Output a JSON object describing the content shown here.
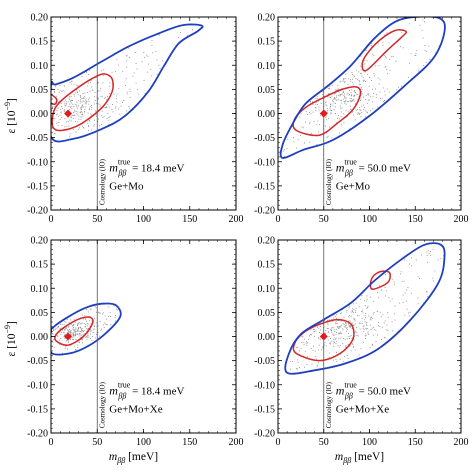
{
  "chart_data": [
    {
      "type": "scatter",
      "panel": "top-left",
      "xlim": [
        0,
        200
      ],
      "ylim": [
        -0.2,
        0.2
      ],
      "x_ticks": [
        "0",
        "50",
        "100",
        "150",
        "200"
      ],
      "y_ticks": [
        "-0.20",
        "-0.15",
        "-0.10",
        "-0.05",
        "0.00",
        "0.05",
        "0.10",
        "0.15",
        "0.20"
      ],
      "xlabel": "",
      "ylabel_main": "ε [10",
      "ylabel_sup": "−9",
      "ylabel_end": "]",
      "vline": {
        "x": 50,
        "label": "Cosmology (IO)"
      },
      "annotation": {
        "m_sub": "ββ",
        "m_sup": "true",
        "value": " = 18.4 meV",
        "experiments": "Ge+Mo"
      },
      "true_point": {
        "x": 18.4,
        "y": 0.0
      },
      "contours": [
        {
          "level": "inner",
          "color": "#d62728",
          "points": [
            [
              2,
              -0.028
            ],
            [
              12,
              -0.035
            ],
            [
              32,
              -0.022
            ],
            [
              55,
              0.012
            ],
            [
              66,
              0.045
            ],
            [
              66,
              0.072
            ],
            [
              57,
              0.082
            ],
            [
              44,
              0.072
            ],
            [
              28,
              0.052
            ],
            [
              12,
              0.028
            ],
            [
              3,
              0.005
            ]
          ]
        },
        {
          "level": "inner",
          "color": "#d62728",
          "points": [
            [
              0,
              0.022
            ],
            [
              5,
              0.02
            ],
            [
              6,
              0.03
            ],
            [
              0,
              0.038
            ]
          ]
        },
        {
          "level": "outer",
          "color": "#1f3fbf",
          "points": [
            [
              0,
              -0.048
            ],
            [
              25,
              -0.052
            ],
            [
              55,
              -0.032
            ],
            [
              80,
              -0.005
            ],
            [
              105,
              0.045
            ],
            [
              122,
              0.098
            ],
            [
              138,
              0.145
            ],
            [
              158,
              0.17
            ],
            [
              163,
              0.182
            ],
            [
              142,
              0.183
            ],
            [
              115,
              0.165
            ],
            [
              85,
              0.14
            ],
            [
              55,
              0.108
            ],
            [
              25,
              0.075
            ],
            [
              5,
              0.06
            ],
            [
              0,
              0.058
            ]
          ]
        }
      ],
      "scatter_cloud": {
        "center": [
          30,
          0.015
        ],
        "n": 380
      }
    },
    {
      "type": "scatter",
      "panel": "top-right",
      "xlim": [
        0,
        200
      ],
      "ylim": [
        -0.2,
        0.2
      ],
      "x_ticks": [
        "0",
        "50",
        "100",
        "150",
        "200"
      ],
      "y_ticks": [
        "-0.20",
        "-0.15",
        "-0.10",
        "-0.05",
        "0.00",
        "0.05",
        "0.10",
        "0.15",
        "0.20"
      ],
      "xlabel": "",
      "vline": {
        "x": 50,
        "label": "Cosmology (IO)"
      },
      "annotation": {
        "m_sub": "ββ",
        "m_sup": "true",
        "value": " = 50.0 meV",
        "experiments": "Ge+Mo"
      },
      "true_point": {
        "x": 50.0,
        "y": 0.0
      },
      "contours": [
        {
          "level": "inner",
          "color": "#d62728",
          "points": [
            [
              20,
              -0.035
            ],
            [
              45,
              -0.045
            ],
            [
              65,
              -0.02
            ],
            [
              82,
              0.008
            ],
            [
              90,
              0.04
            ],
            [
              86,
              0.055
            ],
            [
              70,
              0.05
            ],
            [
              52,
              0.035
            ],
            [
              32,
              0.015
            ],
            [
              18,
              -0.012
            ]
          ]
        },
        {
          "level": "inner",
          "color": "#d62728",
          "points": [
            [
              97,
              0.09
            ],
            [
              120,
              0.132
            ],
            [
              135,
              0.158
            ],
            [
              140,
              0.17
            ],
            [
              128,
              0.172
            ],
            [
              110,
              0.15
            ],
            [
              96,
              0.12
            ],
            [
              92,
              0.1
            ]
          ]
        },
        {
          "level": "outer",
          "color": "#1f3fbf",
          "points": [
            [
              5,
              -0.092
            ],
            [
              28,
              -0.075
            ],
            [
              60,
              -0.055
            ],
            [
              100,
              -0.005
            ],
            [
              140,
              0.06
            ],
            [
              170,
              0.115
            ],
            [
              182,
              0.17
            ],
            [
              177,
              0.197
            ],
            [
              150,
              0.2
            ],
            [
              128,
              0.19
            ],
            [
              105,
              0.155
            ],
            [
              80,
              0.1
            ],
            [
              55,
              0.058
            ],
            [
              30,
              0.02
            ],
            [
              15,
              -0.025
            ],
            [
              5,
              -0.065
            ]
          ]
        }
      ],
      "scatter_cloud": {
        "center": [
          65,
          0.035
        ],
        "n": 420
      }
    },
    {
      "type": "scatter",
      "panel": "bottom-left",
      "xlim": [
        0,
        200
      ],
      "ylim": [
        -0.2,
        0.2
      ],
      "x_ticks": [
        "0",
        "50",
        "100",
        "150",
        "200"
      ],
      "y_ticks": [
        "-0.20",
        "-0.15",
        "-0.10",
        "-0.05",
        "0.00",
        "0.05",
        "0.10",
        "0.15",
        "0.20"
      ],
      "xlabel_main": "m",
      "xlabel_sub": "ββ",
      "xlabel_end": " [meV]",
      "ylabel_main": "ε [10",
      "ylabel_sup": "−9",
      "ylabel_end": "]",
      "vline": {
        "x": 50,
        "label": "Cosmology (IO)"
      },
      "annotation": {
        "m_sub": "ββ",
        "m_sup": "true",
        "value": " = 18.4 meV",
        "experiments": "Ge+Mo+Xe"
      },
      "true_point": {
        "x": 18.4,
        "y": 0.0
      },
      "contours": [
        {
          "level": "inner",
          "color": "#d62728",
          "points": [
            [
              5,
              -0.008
            ],
            [
              18,
              -0.018
            ],
            [
              35,
              0.0
            ],
            [
              45,
              0.028
            ],
            [
              42,
              0.04
            ],
            [
              30,
              0.036
            ],
            [
              15,
              0.02
            ],
            [
              6,
              0.005
            ]
          ]
        },
        {
          "level": "outer",
          "color": "#1f3fbf",
          "points": [
            [
              0,
              -0.033
            ],
            [
              20,
              -0.035
            ],
            [
              40,
              -0.02
            ],
            [
              60,
              0.008
            ],
            [
              75,
              0.042
            ],
            [
              70,
              0.065
            ],
            [
              55,
              0.068
            ],
            [
              38,
              0.06
            ],
            [
              18,
              0.04
            ],
            [
              3,
              0.02
            ],
            [
              0,
              0.01
            ]
          ]
        }
      ],
      "scatter_cloud": {
        "center": [
          25,
          0.012
        ],
        "n": 300
      }
    },
    {
      "type": "scatter",
      "panel": "bottom-right",
      "xlim": [
        0,
        200
      ],
      "ylim": [
        -0.2,
        0.2
      ],
      "x_ticks": [
        "0",
        "50",
        "100",
        "150",
        "200"
      ],
      "y_ticks": [
        "-0.20",
        "-0.15",
        "-0.10",
        "-0.05",
        "0.00",
        "0.05",
        "0.10",
        "0.15",
        "0.20"
      ],
      "xlabel_main": "m",
      "xlabel_sub": "ββ",
      "xlabel_end": " [meV]",
      "vline": {
        "x": 50,
        "label": "Cosmology (IO)"
      },
      "annotation": {
        "m_sub": "ββ",
        "m_sup": "true",
        "value": " = 50.0 meV",
        "experiments": "Ge+Mo+Xe"
      },
      "true_point": {
        "x": 50.0,
        "y": 0.0
      },
      "contours": [
        {
          "level": "inner",
          "color": "#d62728",
          "points": [
            [
              20,
              -0.035
            ],
            [
              45,
              -0.05
            ],
            [
              68,
              -0.035
            ],
            [
              82,
              -0.005
            ],
            [
              80,
              0.025
            ],
            [
              65,
              0.035
            ],
            [
              45,
              0.025
            ],
            [
              28,
              0.008
            ],
            [
              18,
              -0.015
            ]
          ]
        },
        {
          "level": "inner",
          "color": "#d62728",
          "points": [
            [
              104,
              0.098
            ],
            [
              120,
              0.112
            ],
            [
              122,
              0.132
            ],
            [
              113,
              0.135
            ],
            [
              104,
              0.125
            ],
            [
              101,
              0.108
            ]
          ]
        },
        {
          "level": "outer",
          "color": "#1f3fbf",
          "points": [
            [
              10,
              -0.075
            ],
            [
              40,
              -0.07
            ],
            [
              75,
              -0.055
            ],
            [
              110,
              -0.025
            ],
            [
              145,
              0.035
            ],
            [
              175,
              0.11
            ],
            [
              182,
              0.165
            ],
            [
              178,
              0.19
            ],
            [
              160,
              0.19
            ],
            [
              135,
              0.16
            ],
            [
              105,
              0.115
            ],
            [
              80,
              0.07
            ],
            [
              50,
              0.035
            ],
            [
              25,
              0.005
            ],
            [
              12,
              -0.035
            ]
          ]
        }
      ],
      "scatter_cloud": {
        "center": [
          65,
          0.025
        ],
        "n": 420
      }
    }
  ]
}
